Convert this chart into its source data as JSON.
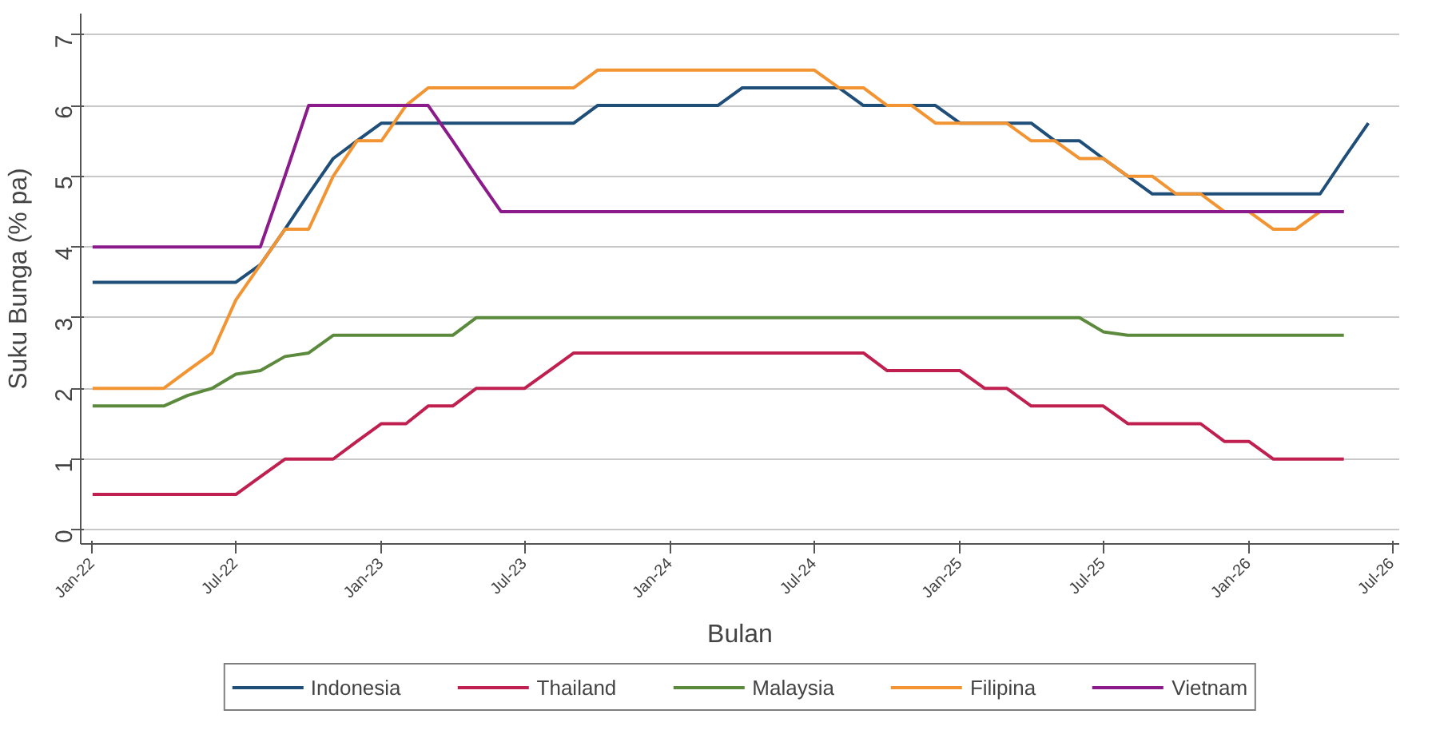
{
  "chart_data": {
    "type": "line",
    "xlabel": "Bulan",
    "ylabel": "Suku Bunga (% pa)",
    "x": [
      "2022-01",
      "2022-02",
      "2022-03",
      "2022-04",
      "2022-05",
      "2022-06",
      "2022-07",
      "2022-08",
      "2022-09",
      "2022-10",
      "2022-11",
      "2022-12",
      "2023-01",
      "2023-02",
      "2023-03",
      "2023-04",
      "2023-05",
      "2023-06",
      "2023-07",
      "2023-08",
      "2023-09",
      "2023-10",
      "2023-11",
      "2023-12",
      "2024-01",
      "2024-02",
      "2024-03",
      "2024-04",
      "2024-05",
      "2024-06",
      "2024-07",
      "2024-08",
      "2024-09",
      "2024-10",
      "2024-11",
      "2024-12",
      "2025-01",
      "2025-02",
      "2025-03",
      "2025-04",
      "2025-05",
      "2025-06",
      "2025-07",
      "2025-08",
      "2025-09",
      "2025-10",
      "2025-11",
      "2025-12",
      "2026-01",
      "2026-02",
      "2026-03",
      "2026-04",
      "2026-05",
      "2026-06"
    ],
    "series": [
      {
        "name": "Indonesia",
        "color": "#1f4e79",
        "values": [
          3.5,
          3.5,
          3.5,
          3.5,
          3.5,
          3.5,
          3.5,
          3.75,
          4.25,
          4.75,
          5.25,
          5.5,
          5.75,
          5.75,
          5.75,
          5.75,
          5.75,
          5.75,
          5.75,
          5.75,
          5.75,
          6.0,
          6.0,
          6.0,
          6.0,
          6.0,
          6.0,
          6.25,
          6.25,
          6.25,
          6.25,
          6.25,
          6.0,
          6.0,
          6.0,
          6.0,
          5.75,
          5.75,
          5.75,
          5.75,
          5.5,
          5.5,
          5.25,
          5.0,
          4.75,
          4.75,
          4.75,
          4.75,
          4.75,
          4.75,
          4.75,
          4.75,
          5.25,
          5.75
        ]
      },
      {
        "name": "Thailand",
        "color": "#c0204f",
        "values": [
          0.5,
          0.5,
          0.5,
          0.5,
          0.5,
          0.5,
          0.5,
          0.75,
          1.0,
          1.0,
          1.0,
          1.25,
          1.5,
          1.5,
          1.75,
          1.75,
          2.0,
          2.0,
          2.0,
          2.25,
          2.5,
          2.5,
          2.5,
          2.5,
          2.5,
          2.5,
          2.5,
          2.5,
          2.5,
          2.5,
          2.5,
          2.5,
          2.5,
          2.25,
          2.25,
          2.25,
          2.25,
          2.0,
          2.0,
          1.75,
          1.75,
          1.75,
          1.75,
          1.5,
          1.5,
          1.5,
          1.5,
          1.25,
          1.25,
          1.0,
          1.0,
          1.0,
          1.0,
          null
        ]
      },
      {
        "name": "Malaysia",
        "color": "#5b8a3c",
        "values": [
          1.75,
          1.75,
          1.75,
          1.75,
          1.9,
          2.0,
          2.2,
          2.25,
          2.45,
          2.5,
          2.75,
          2.75,
          2.75,
          2.75,
          2.75,
          2.75,
          3.0,
          3.0,
          3.0,
          3.0,
          3.0,
          3.0,
          3.0,
          3.0,
          3.0,
          3.0,
          3.0,
          3.0,
          3.0,
          3.0,
          3.0,
          3.0,
          3.0,
          3.0,
          3.0,
          3.0,
          3.0,
          3.0,
          3.0,
          3.0,
          3.0,
          3.0,
          2.8,
          2.75,
          2.75,
          2.75,
          2.75,
          2.75,
          2.75,
          2.75,
          2.75,
          2.75,
          2.75,
          null
        ]
      },
      {
        "name": "Filipina",
        "color": "#f29432",
        "values": [
          2.0,
          2.0,
          2.0,
          2.0,
          2.25,
          2.5,
          3.25,
          3.75,
          4.25,
          4.25,
          5.0,
          5.5,
          5.5,
          6.0,
          6.25,
          6.25,
          6.25,
          6.25,
          6.25,
          6.25,
          6.25,
          6.5,
          6.5,
          6.5,
          6.5,
          6.5,
          6.5,
          6.5,
          6.5,
          6.5,
          6.5,
          6.25,
          6.25,
          6.0,
          6.0,
          5.75,
          5.75,
          5.75,
          5.75,
          5.5,
          5.5,
          5.25,
          5.25,
          5.0,
          5.0,
          4.75,
          4.75,
          4.5,
          4.5,
          4.25,
          4.25,
          4.5,
          4.5,
          null
        ]
      },
      {
        "name": "Vietnam",
        "color": "#8b1a8b",
        "values": [
          4.0,
          4.0,
          4.0,
          4.0,
          4.0,
          4.0,
          4.0,
          4.0,
          5.0,
          6.0,
          6.0,
          6.0,
          6.0,
          6.0,
          6.0,
          5.5,
          5.0,
          4.5,
          4.5,
          4.5,
          4.5,
          4.5,
          4.5,
          4.5,
          4.5,
          4.5,
          4.5,
          4.5,
          4.5,
          4.5,
          4.5,
          4.5,
          4.5,
          4.5,
          4.5,
          4.5,
          4.5,
          4.5,
          4.5,
          4.5,
          4.5,
          4.5,
          4.5,
          4.5,
          4.5,
          4.5,
          4.5,
          4.5,
          4.5,
          4.5,
          4.5,
          4.5,
          4.5,
          null
        ]
      }
    ],
    "xlim": [
      "2021-12-17",
      "2026-07-10"
    ],
    "xticks": [
      {
        "value": "2022-01",
        "label": "Jan-22"
      },
      {
        "value": "2022-07",
        "label": "Jul-22"
      },
      {
        "value": "2023-01",
        "label": "Jan-23"
      },
      {
        "value": "2023-07",
        "label": "Jul-23"
      },
      {
        "value": "2024-01",
        "label": "Jan-24"
      },
      {
        "value": "2024-07",
        "label": "Jul-24"
      },
      {
        "value": "2025-01",
        "label": "Jan-25"
      },
      {
        "value": "2025-07",
        "label": "Jul-25"
      },
      {
        "value": "2026-01",
        "label": "Jan-26"
      },
      {
        "value": "2026-07",
        "label": "Jul-26"
      }
    ],
    "ylim": [
      -0.2,
      7.3
    ],
    "yticks": [
      0,
      1,
      2,
      3,
      4,
      5,
      6,
      7
    ],
    "grid": "y",
    "legend": "bottom",
    "marker": "none",
    "line_style": "solid"
  }
}
